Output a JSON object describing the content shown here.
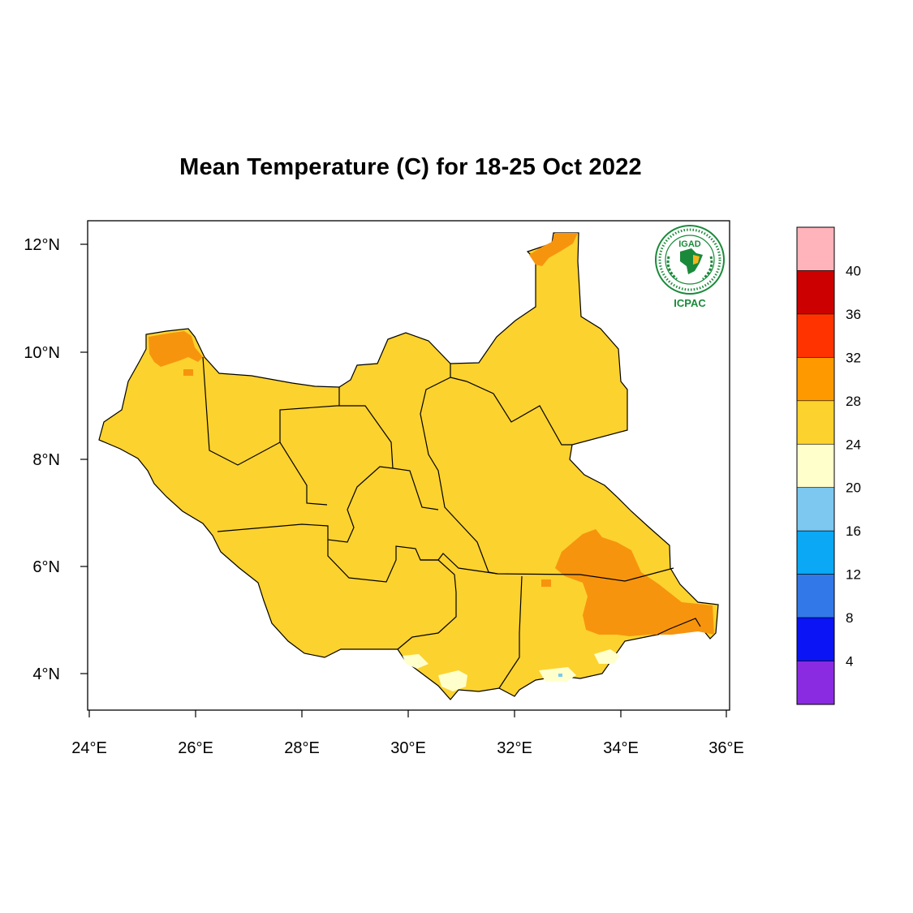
{
  "title": "Mean Temperature (C) for 18-25 Oct 2022",
  "map": {
    "region": "South Sudan",
    "longitude_range": [
      24,
      36
    ],
    "latitude_range": [
      3.5,
      12.5
    ],
    "x_ticks": [
      "24°E",
      "26°E",
      "28°E",
      "30°E",
      "32°E",
      "34°E",
      "36°E"
    ],
    "y_ticks": [
      "12°N",
      "10°N",
      "8°N",
      "6°N",
      "4°N"
    ],
    "dominant_class": "24–28",
    "warm_areas_class": "28–32",
    "cool_patches_class": "20–24"
  },
  "colorbar": {
    "labels": [
      "40",
      "36",
      "32",
      "28",
      "24",
      "20",
      "16",
      "12",
      "8",
      "4"
    ],
    "colors": [
      "#ffb3ba",
      "#cc0000",
      "#ff3300",
      "#ff9900",
      "#fcd22e",
      "#ffffcc",
      "#7cc8f0",
      "#0aa8f5",
      "#3278e8",
      "#0a14f5",
      "#8a2be2"
    ]
  },
  "logo": {
    "name": "IGAD",
    "subtitle": "ICPAC",
    "ring_text": "INTERGOVERNMENTAL AUTHORITY ON DEVELOPMENT"
  },
  "colors": {
    "map_base": "#fcd22e",
    "map_warm": "#f7940d",
    "map_cool": "#ffffcc",
    "logo_green": "#1a8a3a"
  }
}
